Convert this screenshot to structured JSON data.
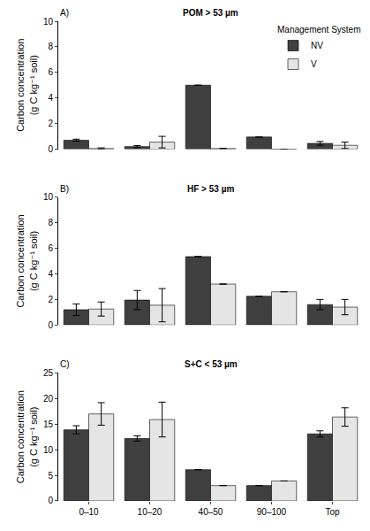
{
  "chart_data": [
    {
      "type": "bar",
      "title": "POM > 53 µm",
      "annotations": [
        "A)"
      ],
      "y_label": "Carbon concentration\n(g C kg⁻¹ soil)",
      "legend_title": "Management System",
      "legend": "top right",
      "categories": [
        "0–10",
        "10–20",
        "40–50",
        "90–100",
        "Top"
      ],
      "series": [
        {
          "name": "NV",
          "color": "#3f3f3f",
          "values": [
            0.7,
            0.2,
            5.0,
            0.95,
            0.45
          ],
          "errors": [
            0.08,
            0.08,
            null,
            null,
            0.15
          ]
        },
        {
          "name": "V",
          "color": "#e5e5e5",
          "values": [
            0.05,
            0.55,
            0.05,
            0.0,
            0.3
          ],
          "errors": [
            0.05,
            0.45,
            null,
            null,
            0.25
          ]
        }
      ],
      "ylim": [
        0,
        10
      ],
      "yticks": [
        0,
        2,
        4,
        6,
        8,
        10
      ],
      "grid": false,
      "tick_labels": "y"
    },
    {
      "type": "bar",
      "title": "HF > 53 µm",
      "annotations": [
        "B)"
      ],
      "y_label": "Carbon concentration\n(g C kg⁻¹ soil)",
      "categories": [
        "0–10",
        "10–20",
        "40–50",
        "90–100",
        "Top"
      ],
      "series": [
        {
          "name": "NV",
          "color": "#3f3f3f",
          "values": [
            1.2,
            1.95,
            5.35,
            2.25,
            1.6
          ],
          "errors": [
            0.45,
            0.75,
            null,
            null,
            0.4
          ]
        },
        {
          "name": "V",
          "color": "#e5e5e5",
          "values": [
            1.25,
            1.55,
            3.2,
            2.6,
            1.4
          ],
          "errors": [
            0.55,
            1.3,
            null,
            null,
            0.6
          ]
        }
      ],
      "ylim": [
        0,
        10
      ],
      "yticks": [
        0,
        2,
        4,
        6,
        8,
        10
      ],
      "grid": false,
      "tick_labels": "y"
    },
    {
      "type": "bar",
      "title": "S+C < 53 µm",
      "annotations": [
        "C)"
      ],
      "y_label": "Carbon concentration\n(g C kg⁻¹ soil)",
      "categories": [
        "0–10",
        "10–20",
        "40–50",
        "90–100",
        "Top"
      ],
      "series": [
        {
          "name": "NV",
          "color": "#3f3f3f",
          "values": [
            13.9,
            12.2,
            6.1,
            3.0,
            13.1
          ],
          "errors": [
            0.8,
            0.5,
            null,
            null,
            0.6
          ]
        },
        {
          "name": "V",
          "color": "#e5e5e5",
          "values": [
            17.0,
            15.9,
            3.0,
            3.9,
            16.4
          ],
          "errors": [
            2.2,
            3.4,
            null,
            null,
            1.8
          ]
        }
      ],
      "ylim": [
        0,
        25
      ],
      "yticks": [
        0,
        5,
        10,
        15,
        20,
        25
      ],
      "grid": false
    }
  ]
}
